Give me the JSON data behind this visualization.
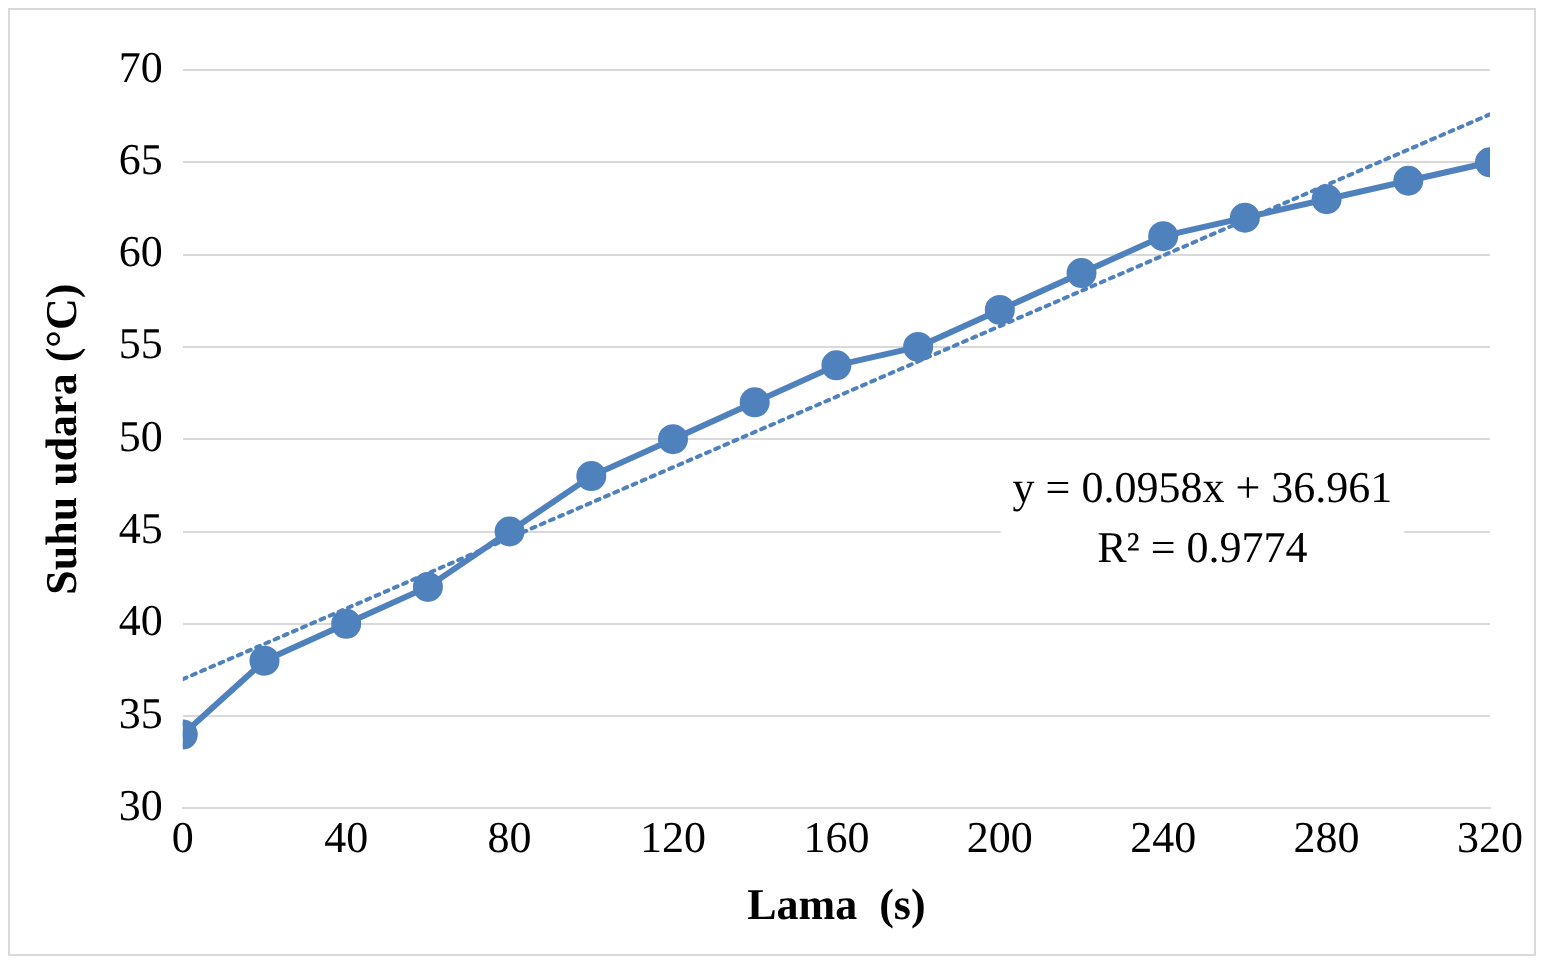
{
  "chart_data": {
    "type": "line",
    "xlabel": "Lama  (s)",
    "ylabel": "Suhu udara (°C)",
    "x": [
      0,
      20,
      40,
      60,
      80,
      100,
      120,
      140,
      160,
      180,
      200,
      220,
      240,
      260,
      280,
      300,
      320
    ],
    "series": [
      {
        "color": "#4f81bd",
        "values": [
          34,
          38,
          40,
          42,
          45,
          48,
          50,
          52,
          54,
          55,
          57,
          59,
          61,
          62,
          63,
          64,
          65
        ],
        "marker": "circle",
        "line_style": "solid"
      },
      {
        "type": "line",
        "x": [
          0,
          320
        ],
        "values": [
          37.0,
          67.6
        ],
        "color": "#4f81bd",
        "marker": "none",
        "line_style": "dotted"
      }
    ],
    "xlim": [
      0,
      320
    ],
    "xticks": [
      0,
      40,
      80,
      120,
      160,
      200,
      240,
      280,
      320
    ],
    "ylim": [
      30,
      70
    ],
    "yticks": [
      30,
      35,
      40,
      45,
      50,
      55,
      60,
      65,
      70
    ],
    "grid": "y",
    "legend": false,
    "annotations": [
      "y = 0.0958x + 36.961",
      "R² = 0.9774"
    ]
  }
}
